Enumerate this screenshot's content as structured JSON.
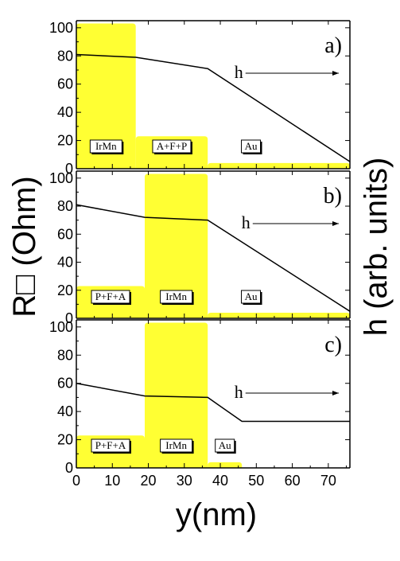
{
  "chart_data": {
    "type": "area",
    "xlabel": "y(nm)",
    "ylabel_left": "R□ (Ohm)",
    "ylabel_right": "h (arb. units)",
    "x_ticks": [
      0,
      10,
      20,
      30,
      40,
      50,
      60,
      70
    ],
    "xlim": [
      0,
      76
    ],
    "panels": [
      {
        "label": "a)",
        "ylim": [
          0,
          105
        ],
        "y_ticks": [
          0,
          20,
          40,
          60,
          80,
          100
        ],
        "segments": [
          {
            "name": "IrMn",
            "x_start": 0,
            "x_end": 16.5,
            "value": 103
          },
          {
            "name": "A+F+P",
            "x_start": 16.5,
            "x_end": 36.5,
            "value": 23
          },
          {
            "name": "Au",
            "x_start": 36.5,
            "x_end": 76,
            "value": 4
          }
        ],
        "h_curve": {
          "name": "h",
          "x": [
            0,
            16.5,
            36.5,
            76
          ],
          "y": [
            81,
            79,
            71,
            5
          ]
        }
      },
      {
        "label": "b)",
        "ylim": [
          0,
          105
        ],
        "y_ticks": [
          0,
          20,
          40,
          60,
          80,
          100
        ],
        "segments": [
          {
            "name": "P+F+A",
            "x_start": 0,
            "x_end": 19,
            "value": 23
          },
          {
            "name": "IrMn",
            "x_start": 19,
            "x_end": 36.5,
            "value": 103
          },
          {
            "name": "Au",
            "x_start": 36.5,
            "x_end": 76,
            "value": 4
          }
        ],
        "h_curve": {
          "name": "h",
          "x": [
            0,
            19,
            36.5,
            76
          ],
          "y": [
            81,
            72,
            70,
            5
          ]
        }
      },
      {
        "label": "c)",
        "ylim": [
          0,
          105
        ],
        "y_ticks": [
          0,
          20,
          40,
          60,
          80,
          100
        ],
        "segments": [
          {
            "name": "P+F+A",
            "x_start": 0,
            "x_end": 19,
            "value": 23
          },
          {
            "name": "IrMn",
            "x_start": 19,
            "x_end": 36.5,
            "value": 103
          },
          {
            "name": "Au",
            "x_start": 36.5,
            "x_end": 46,
            "value": 4
          }
        ],
        "h_curve": {
          "name": "h",
          "x": [
            0,
            19,
            36.5,
            46,
            76
          ],
          "y": [
            60,
            51,
            50,
            33,
            33
          ]
        }
      }
    ],
    "fill_color": "#ffff33",
    "line_color": "#000000"
  }
}
